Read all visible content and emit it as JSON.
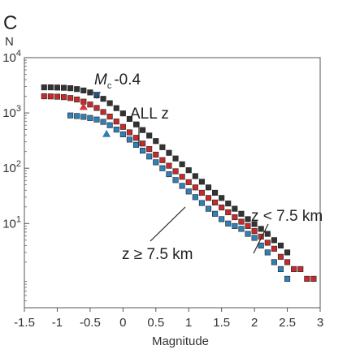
{
  "panel_label": "C",
  "chart_data": {
    "type": "scatter",
    "xlabel": "Magnitude",
    "ylabel": "N",
    "xlim": [
      -1.5,
      3.0
    ],
    "ylim": [
      0.3,
      10000
    ],
    "yscale": "log",
    "grid": false,
    "x_ticks": [
      -1.5,
      -1,
      -0.5,
      0,
      0.5,
      1,
      1.5,
      2,
      2.5,
      3
    ],
    "x_tick_labels": [
      "-1.5",
      "-1",
      "-0.5",
      "0",
      "0.5",
      "1",
      "1.5",
      "2",
      "2.5",
      "3"
    ],
    "y_ticks": [
      10,
      100,
      1000,
      10000
    ],
    "y_tick_labels": [
      {
        "base": "10",
        "exp": "1"
      },
      {
        "base": "10",
        "exp": "2"
      },
      {
        "base": "10",
        "exp": "3"
      },
      {
        "base": "10",
        "exp": "4"
      }
    ],
    "series": [
      {
        "name": "ALL z",
        "color": "#333333",
        "x": [
          -1.2,
          -1.1,
          -1.0,
          -0.9,
          -0.8,
          -0.7,
          -0.6,
          -0.5,
          -0.4,
          -0.3,
          -0.2,
          -0.1,
          0.0,
          0.1,
          0.2,
          0.3,
          0.4,
          0.5,
          0.6,
          0.7,
          0.8,
          0.9,
          1.0,
          1.1,
          1.2,
          1.3,
          1.4,
          1.5,
          1.6,
          1.7,
          1.8,
          1.9,
          2.0,
          2.1,
          2.2,
          2.3,
          2.4,
          2.5
        ],
        "y": [
          2900,
          2900,
          2880,
          2850,
          2800,
          2700,
          2550,
          2350,
          2080,
          1800,
          1500,
          1220,
          980,
          780,
          620,
          490,
          390,
          310,
          240,
          190,
          150,
          118,
          92,
          72,
          57,
          45,
          36,
          29,
          23,
          18.5,
          15,
          12,
          9.8,
          8,
          6.5,
          5,
          4,
          3
        ]
      },
      {
        "name": "z < 7.5 km",
        "color": "#c62a2a",
        "x": [
          -1.2,
          -1.1,
          -1.0,
          -0.9,
          -0.8,
          -0.7,
          -0.6,
          -0.5,
          -0.4,
          -0.3,
          -0.2,
          -0.1,
          0.0,
          0.1,
          0.2,
          0.3,
          0.4,
          0.5,
          0.6,
          0.7,
          0.8,
          0.9,
          1.0,
          1.1,
          1.2,
          1.3,
          1.4,
          1.5,
          1.6,
          1.7,
          1.8,
          1.9,
          2.0,
          2.1,
          2.2,
          2.3,
          2.4,
          2.5,
          2.6,
          2.7,
          2.8,
          2.9
        ],
        "y": [
          2000,
          1990,
          1970,
          1930,
          1860,
          1750,
          1600,
          1420,
          1230,
          1040,
          860,
          700,
          560,
          445,
          355,
          280,
          222,
          176,
          140,
          111,
          88,
          70,
          56,
          45,
          36,
          29,
          24,
          19.5,
          16,
          13,
          10.8,
          9,
          7.3,
          5.8,
          4.5,
          3.5,
          2.5,
          2,
          1.5,
          1.5,
          1,
          1
        ]
      },
      {
        "name": "z ≥ 7.5 km",
        "color": "#2f7fb8",
        "x": [
          -0.8,
          -0.7,
          -0.6,
          -0.5,
          -0.4,
          -0.3,
          -0.2,
          -0.1,
          0.0,
          0.1,
          0.2,
          0.3,
          0.4,
          0.5,
          0.6,
          0.7,
          0.8,
          0.9,
          1.0,
          1.1,
          1.2,
          1.3,
          1.4,
          1.5,
          1.6,
          1.7,
          1.8,
          1.9,
          2.0,
          2.1,
          2.2,
          2.3,
          2.4,
          2.5
        ],
        "y": [
          900,
          880,
          850,
          810,
          760,
          690,
          600,
          500,
          410,
          330,
          265,
          208,
          163,
          128,
          100,
          78,
          61,
          48,
          38,
          30,
          23.5,
          18.5,
          15,
          12,
          10,
          9,
          8,
          6.5,
          5.5,
          4,
          3,
          2,
          1.5,
          1
        ]
      }
    ],
    "markers": [
      {
        "series": "ALL z",
        "x": -0.4,
        "y": 2100,
        "color": "#2b4c7e"
      },
      {
        "series": "z < 7.5 km",
        "x": -0.6,
        "y": 1300,
        "color": "#d13a3a"
      },
      {
        "series": "z ≥ 7.5 km",
        "x": -0.25,
        "y": 420,
        "color": "#2f7fb8"
      }
    ],
    "annotations": [
      {
        "id": "mc",
        "text": "-0.4",
        "prefix": "M",
        "subscript": "c"
      },
      {
        "id": "all",
        "text": "ALL  z"
      },
      {
        "id": "shallow",
        "text": "z < 7.5 km"
      },
      {
        "id": "deep",
        "text": "z ≥ 7.5 km"
      }
    ]
  }
}
